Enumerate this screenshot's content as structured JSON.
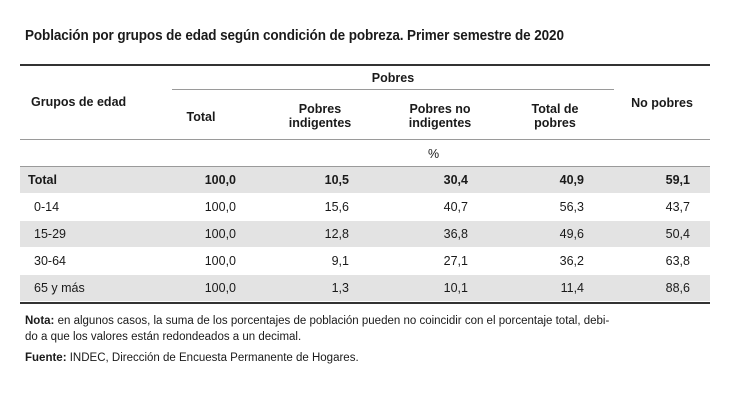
{
  "title": "Población por grupos de edad según condición de pobreza. Primer semestre de 2020",
  "header": {
    "group_col": "Grupos de edad",
    "pobres_group": "Pobres",
    "total": "Total",
    "pobres_indigentes_1": "Pobres",
    "pobres_indigentes_2": "indigentes",
    "pobres_no_indigentes_1": "Pobres no",
    "pobres_no_indigentes_2": "indigentes",
    "total_pobres_1": "Total de",
    "total_pobres_2": "pobres",
    "no_pobres": "No pobres",
    "unit": "%"
  },
  "rows": [
    {
      "group": "Total",
      "total": "100,0",
      "indigentes": "10,5",
      "no_indigentes": "30,4",
      "total_pobres": "40,9",
      "no_pobres": "59,1"
    },
    {
      "group": "0-14",
      "total": "100,0",
      "indigentes": "15,6",
      "no_indigentes": "40,7",
      "total_pobres": "56,3",
      "no_pobres": "43,7"
    },
    {
      "group": "15-29",
      "total": "100,0",
      "indigentes": "12,8",
      "no_indigentes": "36,8",
      "total_pobres": "49,6",
      "no_pobres": "50,4"
    },
    {
      "group": "30-64",
      "total": "100,0",
      "indigentes": "9,1",
      "no_indigentes": "27,1",
      "total_pobres": "36,2",
      "no_pobres": "63,8"
    },
    {
      "group": "65 y más",
      "total": "100,0",
      "indigentes": "1,3",
      "no_indigentes": "10,1",
      "total_pobres": "11,4",
      "no_pobres": "88,6"
    }
  ],
  "notes": {
    "nota_label": "Nota:",
    "nota_line1": " en algunos casos, la suma de los porcentajes de población pueden no coincidir con el porcentaje total, debi-",
    "nota_line2": "do a que los valores están redondeados a un decimal.",
    "fuente_label": "Fuente:",
    "fuente_text": " INDEC, Dirección de Encuesta Permanente de Hogares."
  }
}
